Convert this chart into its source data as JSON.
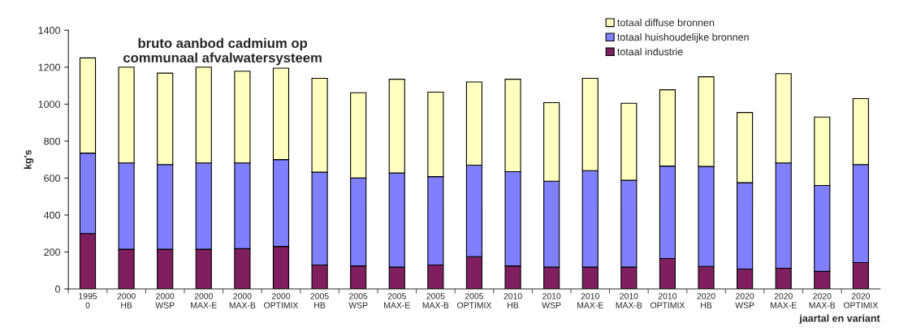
{
  "chart_data": {
    "type": "bar",
    "stacked": true,
    "title": "bruto aanbod cadmium op\ncommunaal afvalwatersysteem",
    "xlabel": "jaartal en variant",
    "ylabel": "kg's",
    "categories": [
      "1995\n0",
      "2000\nHB",
      "2000\nWSP",
      "2000\nMAX-E",
      "2000\nMAX-B",
      "2000\nOPTIMIX",
      "2005\nHB",
      "2005\nWSP",
      "2005\nMAX-E",
      "2005\nMAX-B",
      "2005\nOPTIMIX",
      "2010\nHB",
      "2010\nWSP",
      "2010\nMAX-E",
      "2010\nMAX-B",
      "2010\nOPTIMIX",
      "2020\nHB",
      "2020\nWSP",
      "2020\nMAX-E",
      "2020\nMAX-B",
      "2020\nOPTIMIX"
    ],
    "series": [
      {
        "name": "totaal industrie",
        "color": "#801f5f",
        "values": [
          300,
          215,
          215,
          215,
          218,
          230,
          130,
          125,
          118,
          130,
          175,
          125,
          118,
          118,
          118,
          165,
          122,
          108,
          112,
          95,
          143
        ]
      },
      {
        "name": "totaal huishoudelijke bronnen",
        "color": "#8080ff",
        "values": [
          435,
          467,
          458,
          467,
          464,
          470,
          502,
          475,
          510,
          478,
          495,
          510,
          465,
          522,
          470,
          500,
          541,
          467,
          570,
          465,
          530
        ]
      },
      {
        "name": "totaal diffuse bronnen",
        "color": "#ffffc0",
        "values": [
          515,
          518,
          495,
          518,
          496,
          495,
          508,
          462,
          507,
          457,
          450,
          500,
          425,
          500,
          417,
          413,
          485,
          380,
          483,
          370,
          357
        ]
      }
    ],
    "ylim": [
      0,
      1400
    ],
    "yticks": [
      0,
      200,
      400,
      600,
      800,
      1000,
      1200,
      1400
    ],
    "grid": false,
    "legend": "top right"
  }
}
